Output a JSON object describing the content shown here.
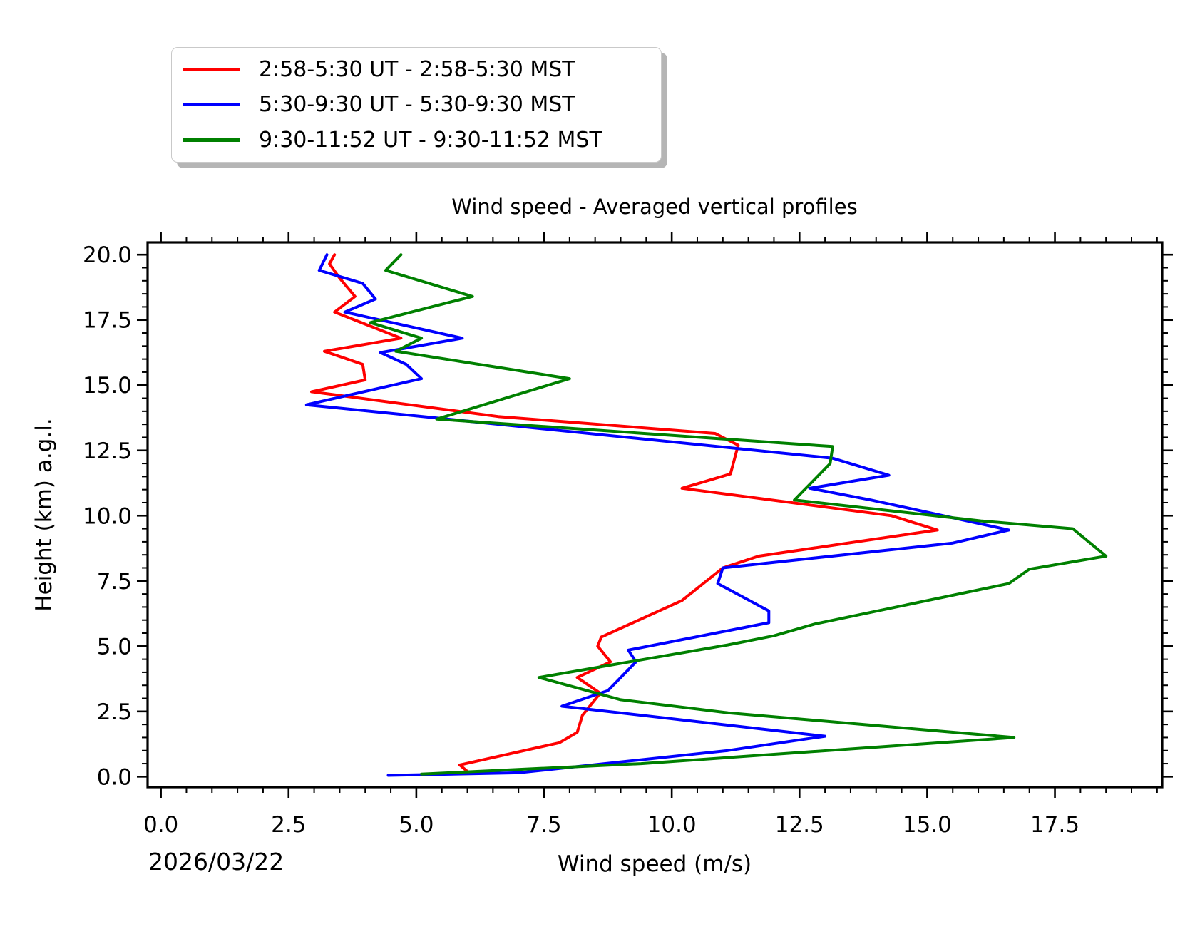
{
  "page": {
    "background": "#ffffff"
  },
  "chart_data": {
    "type": "line",
    "title": "Wind speed - Averaged vertical profiles",
    "xlabel": "Wind speed (m/s)",
    "ylabel": "Height (km) a.g.l.",
    "date_annotation": "2026/03/22",
    "xlim": [
      -0.26,
      19.6
    ],
    "ylim": [
      -0.4,
      20.47
    ],
    "x_major_ticks": [
      0,
      2.5,
      5,
      7.5,
      10,
      12.5,
      15,
      17.5
    ],
    "y_major_ticks": [
      0,
      2.5,
      5,
      7.5,
      10,
      12.5,
      15,
      17.5,
      20
    ],
    "minor_tick_step": 0.5,
    "grid": false,
    "legend": {
      "position": "upper-left-above-axes",
      "shadow": true
    },
    "series": [
      {
        "name": "2:58-5:30 UT - 2:58-5:30 MST",
        "color": "#ff0000",
        "points": [
          [
            6.0,
            0.2
          ],
          [
            5.85,
            0.45
          ],
          [
            7.8,
            1.3
          ],
          [
            8.15,
            1.7
          ],
          [
            8.25,
            2.35
          ],
          [
            8.6,
            3.2
          ],
          [
            8.15,
            3.8
          ],
          [
            8.8,
            4.4
          ],
          [
            8.55,
            5.0
          ],
          [
            8.62,
            5.35
          ],
          [
            10.2,
            6.75
          ],
          [
            11.0,
            8.0
          ],
          [
            11.7,
            8.45
          ],
          [
            15.2,
            9.45
          ],
          [
            14.3,
            10.0
          ],
          [
            10.2,
            11.05
          ],
          [
            11.15,
            11.6
          ],
          [
            11.3,
            12.7
          ],
          [
            10.85,
            13.15
          ],
          [
            6.6,
            13.8
          ],
          [
            2.95,
            14.75
          ],
          [
            4.0,
            15.2
          ],
          [
            3.95,
            15.8
          ],
          [
            3.2,
            16.3
          ],
          [
            4.7,
            16.8
          ],
          [
            3.4,
            17.8
          ],
          [
            3.8,
            18.4
          ],
          [
            3.5,
            19.1
          ],
          [
            3.3,
            19.65
          ],
          [
            3.4,
            20.0
          ]
        ]
      },
      {
        "name": "5:30-9:30 UT - 5:30-9:30 MST",
        "color": "#0000ff",
        "points": [
          [
            4.45,
            0.05
          ],
          [
            7.0,
            0.15
          ],
          [
            11.1,
            1.0
          ],
          [
            13.0,
            1.55
          ],
          [
            7.85,
            2.7
          ],
          [
            8.75,
            3.3
          ],
          [
            9.3,
            4.4
          ],
          [
            9.15,
            4.85
          ],
          [
            11.9,
            5.9
          ],
          [
            11.9,
            6.35
          ],
          [
            10.9,
            7.4
          ],
          [
            11.0,
            8.0
          ],
          [
            15.5,
            8.95
          ],
          [
            16.6,
            9.45
          ],
          [
            13.9,
            10.6
          ],
          [
            12.7,
            11.05
          ],
          [
            14.25,
            11.55
          ],
          [
            13.15,
            12.2
          ],
          [
            2.85,
            14.25
          ],
          [
            5.1,
            15.25
          ],
          [
            4.8,
            15.8
          ],
          [
            4.3,
            16.25
          ],
          [
            5.9,
            16.8
          ],
          [
            3.6,
            17.8
          ],
          [
            4.2,
            18.3
          ],
          [
            3.95,
            18.9
          ],
          [
            3.1,
            19.4
          ],
          [
            3.25,
            20.0
          ]
        ]
      },
      {
        "name": "9:30-11:52 UT - 9:30-11:52 MST",
        "color": "#008000",
        "points": [
          [
            5.1,
            0.1
          ],
          [
            9.4,
            0.5
          ],
          [
            16.7,
            1.5
          ],
          [
            11.1,
            2.45
          ],
          [
            9.0,
            2.95
          ],
          [
            7.4,
            3.8
          ],
          [
            11.1,
            5.05
          ],
          [
            12.0,
            5.4
          ],
          [
            12.8,
            5.85
          ],
          [
            16.6,
            7.4
          ],
          [
            17.0,
            7.95
          ],
          [
            18.5,
            8.45
          ],
          [
            17.85,
            9.5
          ],
          [
            16.05,
            9.8
          ],
          [
            12.4,
            10.6
          ],
          [
            13.1,
            12.0
          ],
          [
            13.15,
            12.65
          ],
          [
            5.4,
            13.7
          ],
          [
            8.0,
            15.25
          ],
          [
            4.6,
            16.3
          ],
          [
            5.1,
            16.8
          ],
          [
            4.1,
            17.4
          ],
          [
            6.1,
            18.4
          ],
          [
            4.4,
            19.4
          ],
          [
            4.7,
            20.0
          ]
        ]
      }
    ]
  }
}
